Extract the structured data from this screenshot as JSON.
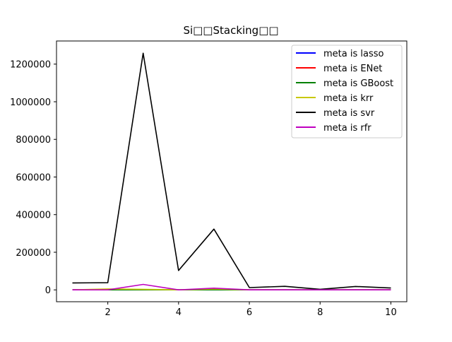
{
  "chart_data": {
    "type": "line",
    "title": "Si□□Stacking□□",
    "xlabel": "",
    "ylabel": "",
    "x": [
      1,
      2,
      3,
      4,
      5,
      6,
      7,
      8,
      9,
      10
    ],
    "xlim": [
      0.55,
      10.45
    ],
    "ylim": [
      -63000,
      1323000
    ],
    "xticks": [
      "2",
      "4",
      "6",
      "8",
      "10"
    ],
    "yticks": [
      "0",
      "200000",
      "400000",
      "600000",
      "800000",
      "1000000",
      "1200000"
    ],
    "grid": false,
    "legend_position": "top-right",
    "series": [
      {
        "name": "meta is lasso",
        "color": "#0000ff",
        "values": [
          0,
          0,
          0,
          0,
          0,
          0,
          0,
          0,
          0,
          0
        ]
      },
      {
        "name": "meta is ENet",
        "color": "#ff0000",
        "values": [
          0,
          0,
          0,
          0,
          0,
          0,
          0,
          0,
          0,
          0
        ]
      },
      {
        "name": "meta is GBoost",
        "color": "#008000",
        "values": [
          0,
          0,
          0,
          0,
          0,
          0,
          0,
          0,
          0,
          0
        ]
      },
      {
        "name": "meta is krr",
        "color": "#c8c800",
        "values": [
          0,
          5000,
          3000,
          0,
          5000,
          0,
          0,
          0,
          0,
          0
        ]
      },
      {
        "name": "meta is svr",
        "color": "#000000",
        "values": [
          37000,
          38000,
          1258000,
          103000,
          323000,
          12000,
          19000,
          3000,
          18000,
          10000
        ]
      },
      {
        "name": "meta is rfr",
        "color": "#bf00bf",
        "values": [
          0,
          0,
          29000,
          0,
          9000,
          0,
          0,
          0,
          0,
          0
        ]
      }
    ]
  }
}
